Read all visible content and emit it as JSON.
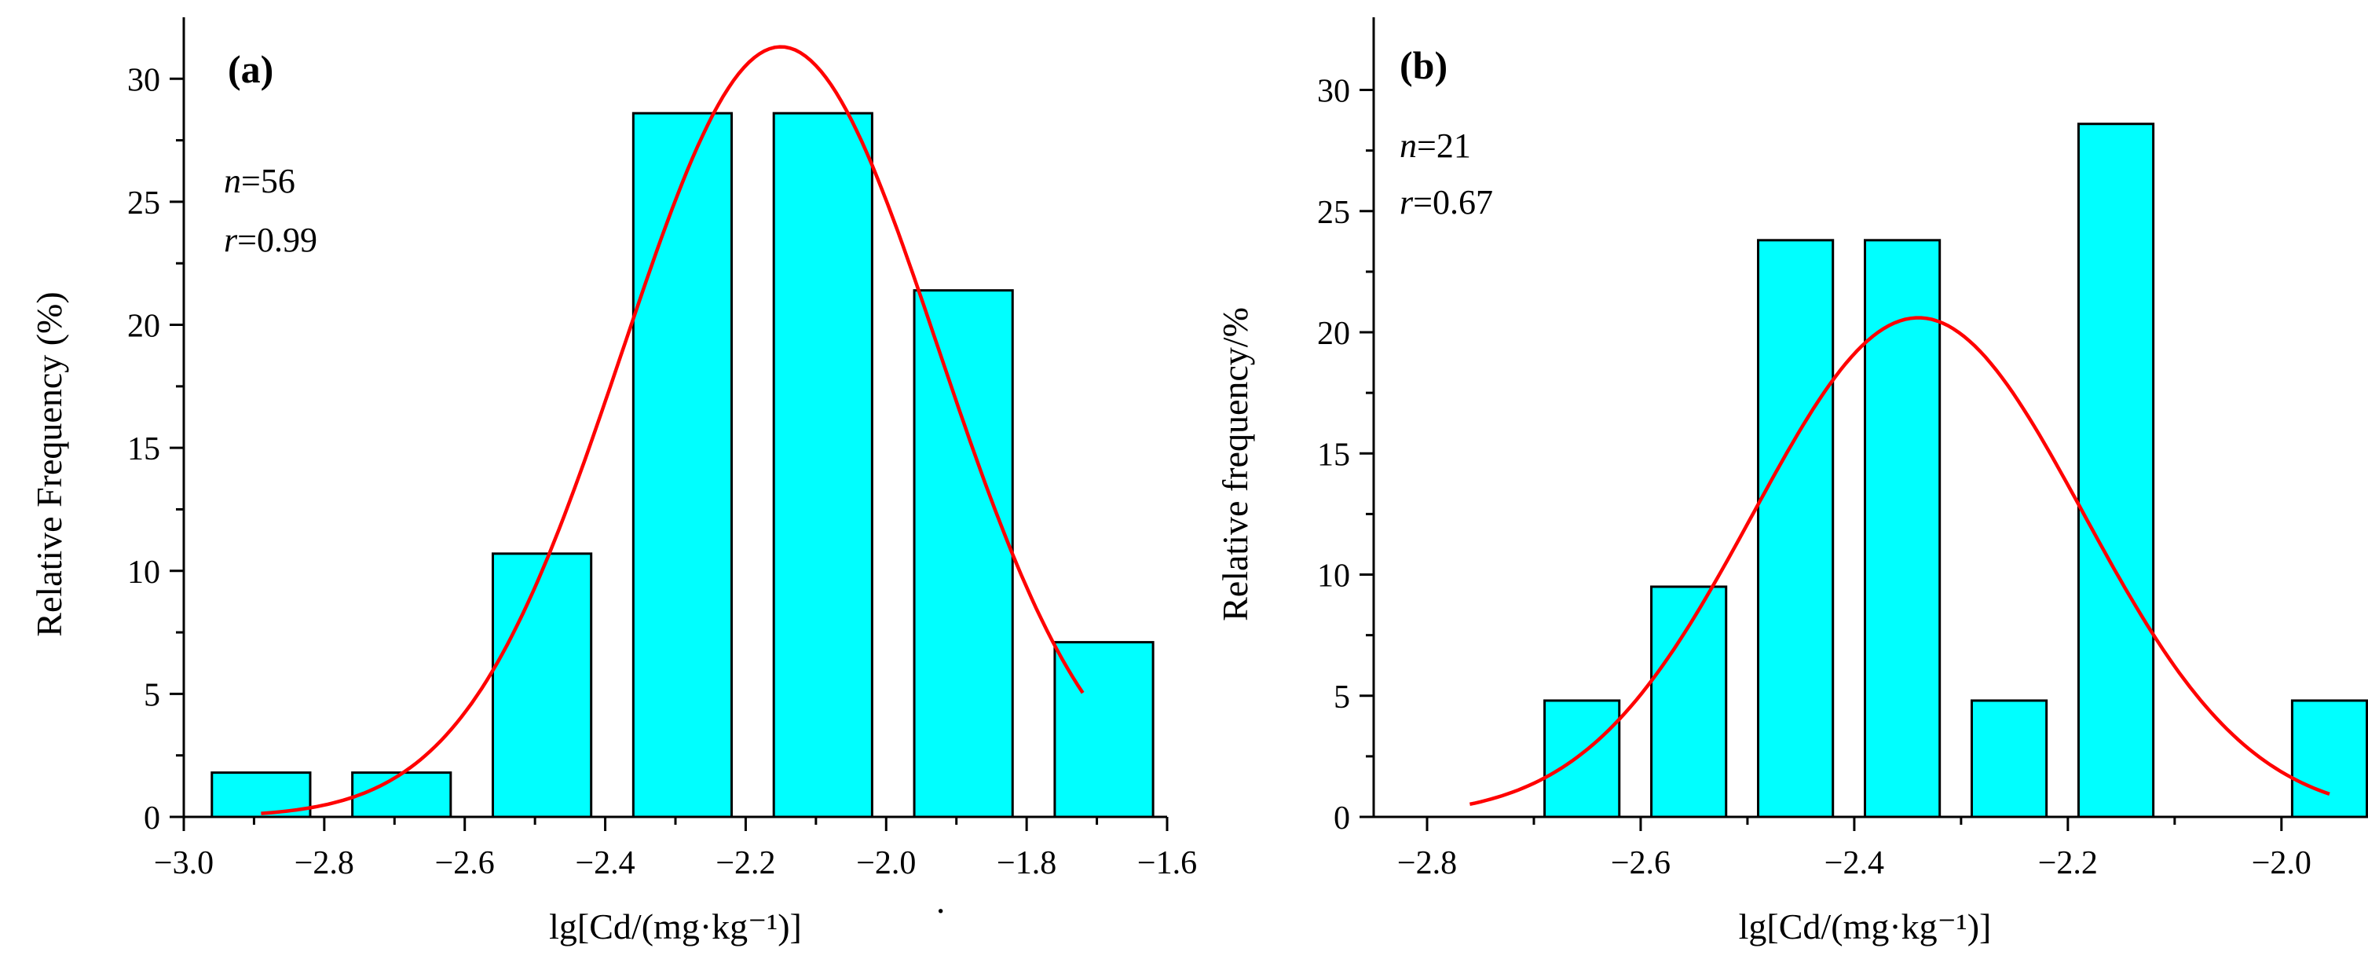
{
  "colors": {
    "bar": "#00ffff",
    "fit": "#ff0000",
    "axis": "#000000"
  },
  "chart_data": [
    {
      "type": "bar",
      "panel_label": "(a)",
      "title": "",
      "xlabel": "lg[Cd/(mg·kg⁻¹)]",
      "xlabel_suffix": "·",
      "ylabel": "Relative Frequency (%)",
      "stats": {
        "n_prefix": "n",
        "n_value": "=56",
        "r_prefix": "r",
        "r_value": "=0.99"
      },
      "xlim": [
        -3.0,
        -1.6
      ],
      "ylim": [
        0,
        32.5
      ],
      "xticks": [
        -3.0,
        -2.8,
        -2.6,
        -2.4,
        -2.2,
        -2.0,
        -1.8,
        -1.6
      ],
      "xtick_labels": [
        "−3.0",
        "−2.8",
        "−2.6",
        "−2.4",
        "−2.2",
        "−2.0",
        "−1.8",
        "−1.6"
      ],
      "yticks": [
        0,
        5,
        10,
        15,
        20,
        25,
        30
      ],
      "ytick_labels": [
        "0",
        "5",
        "10",
        "15",
        "20",
        "25",
        "30"
      ],
      "bar_width": 0.14,
      "bins": [
        {
          "center": -2.89,
          "value": 1.8
        },
        {
          "center": -2.69,
          "value": 1.8
        },
        {
          "center": -2.49,
          "value": 10.7
        },
        {
          "center": -2.29,
          "value": 28.6
        },
        {
          "center": -2.09,
          "value": 28.6
        },
        {
          "center": -1.89,
          "value": 21.4
        },
        {
          "center": -1.69,
          "value": 7.1
        }
      ],
      "fit": {
        "type": "gaussian",
        "amplitude": 31.3,
        "mean": -2.15,
        "sd": 0.225,
        "x_range": [
          -2.89,
          -1.72
        ]
      }
    },
    {
      "type": "bar",
      "panel_label": "(b)",
      "title": "",
      "xlabel": "lg[Cd/(mg·kg⁻¹)]",
      "xlabel_suffix": "",
      "ylabel": "Relative frequency/%",
      "stats": {
        "n_prefix": "n",
        "n_value": "=21",
        "r_prefix": "r",
        "r_value": "=0.67"
      },
      "xlim": [
        -2.85,
        -1.93
      ],
      "ylim": [
        0,
        33
      ],
      "xticks": [
        -2.8,
        -2.6,
        -2.4,
        -2.2,
        -2.0
      ],
      "xtick_labels": [
        "−2.8",
        "−2.6",
        "−2.4",
        "−2.2",
        "−2.0"
      ],
      "yticks": [
        0,
        5,
        10,
        15,
        20,
        25,
        30
      ],
      "ytick_labels": [
        "0",
        "5",
        "10",
        "15",
        "20",
        "25",
        "30"
      ],
      "bar_width": 0.07,
      "bins": [
        {
          "center": -2.655,
          "value": 4.8
        },
        {
          "center": -2.555,
          "value": 9.5
        },
        {
          "center": -2.455,
          "value": 23.8
        },
        {
          "center": -2.355,
          "value": 23.8
        },
        {
          "center": -2.255,
          "value": 4.8
        },
        {
          "center": -2.155,
          "value": 28.6
        },
        {
          "center": -1.955,
          "value": 4.8
        }
      ],
      "fit": {
        "type": "gaussian",
        "amplitude": 20.6,
        "mean": -2.34,
        "sd": 0.155,
        "x_range": [
          -2.76,
          -1.955
        ]
      }
    }
  ]
}
